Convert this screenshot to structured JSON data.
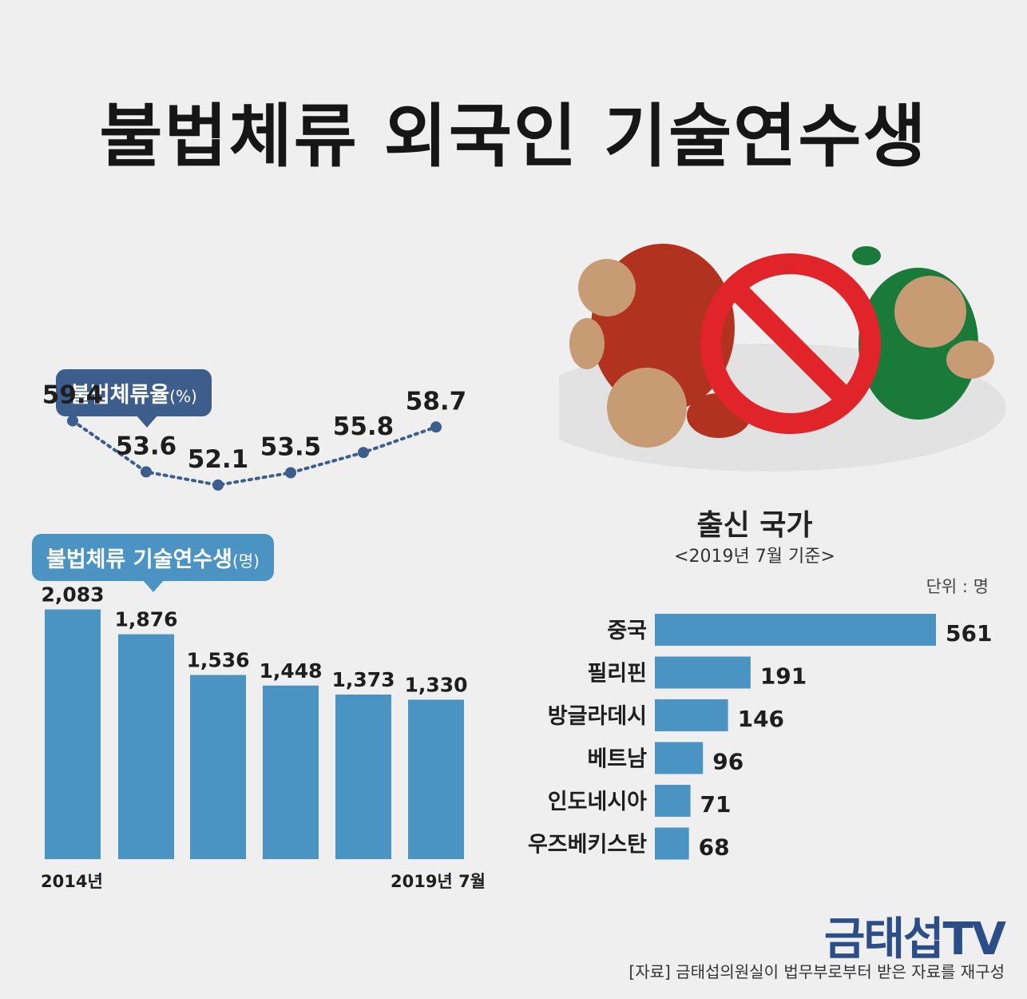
{
  "title": "불법체류 외국인 기술연수생",
  "rate_label": "불법체류율",
  "rate_unit": "(%)",
  "count_label": "불법체류 기술연수생",
  "count_unit": "(명)",
  "country_title": "출신 국가",
  "country_subtitle": "<2019년 7월 기준>",
  "unit_label": "단위 : 명",
  "logo": "금태섭TV",
  "source": "[자료] 금태섭의원실이 법무부로부터 받은 자료를 재구성",
  "colors": {
    "bar": "#4b93c2",
    "rate_line": "#3d5d8c",
    "count_pill": "#4b93c2",
    "rate_pill": "#3d5d8c",
    "logo": "#2c4e86",
    "ban": "#e0242a"
  },
  "icons": [
    "ban-icon",
    "illustration-red-figure",
    "illustration-green-figure"
  ],
  "chart_data": [
    {
      "type": "line",
      "title": "불법체류율(%)",
      "x": [
        "2014년",
        "",
        "",
        "",
        "",
        "2019년 7월"
      ],
      "values": [
        59.4,
        53.6,
        52.1,
        53.5,
        55.8,
        58.7
      ],
      "ylim": [
        50,
        60
      ],
      "grid": false
    },
    {
      "type": "bar",
      "title": "불법체류 기술연수생(명)",
      "categories": [
        "2014년",
        "",
        "",
        "",
        "",
        "2019년 7월"
      ],
      "values": [
        2083,
        1876,
        1536,
        1448,
        1373,
        1330
      ],
      "value_labels": [
        "2,083",
        "1,876",
        "1,536",
        "1,448",
        "1,373",
        "1,330"
      ],
      "ylim": [
        0,
        2200
      ],
      "grid": false
    },
    {
      "type": "bar",
      "orientation": "horizontal",
      "title": "출신 국가",
      "subtitle": "<2019년 7월 기준>",
      "categories": [
        "중국",
        "필리핀",
        "방글라데시",
        "베트남",
        "인도네시아",
        "우즈베키스탄"
      ],
      "values": [
        561,
        191,
        146,
        96,
        71,
        68
      ],
      "xlim": [
        0,
        561
      ],
      "grid": false
    }
  ]
}
